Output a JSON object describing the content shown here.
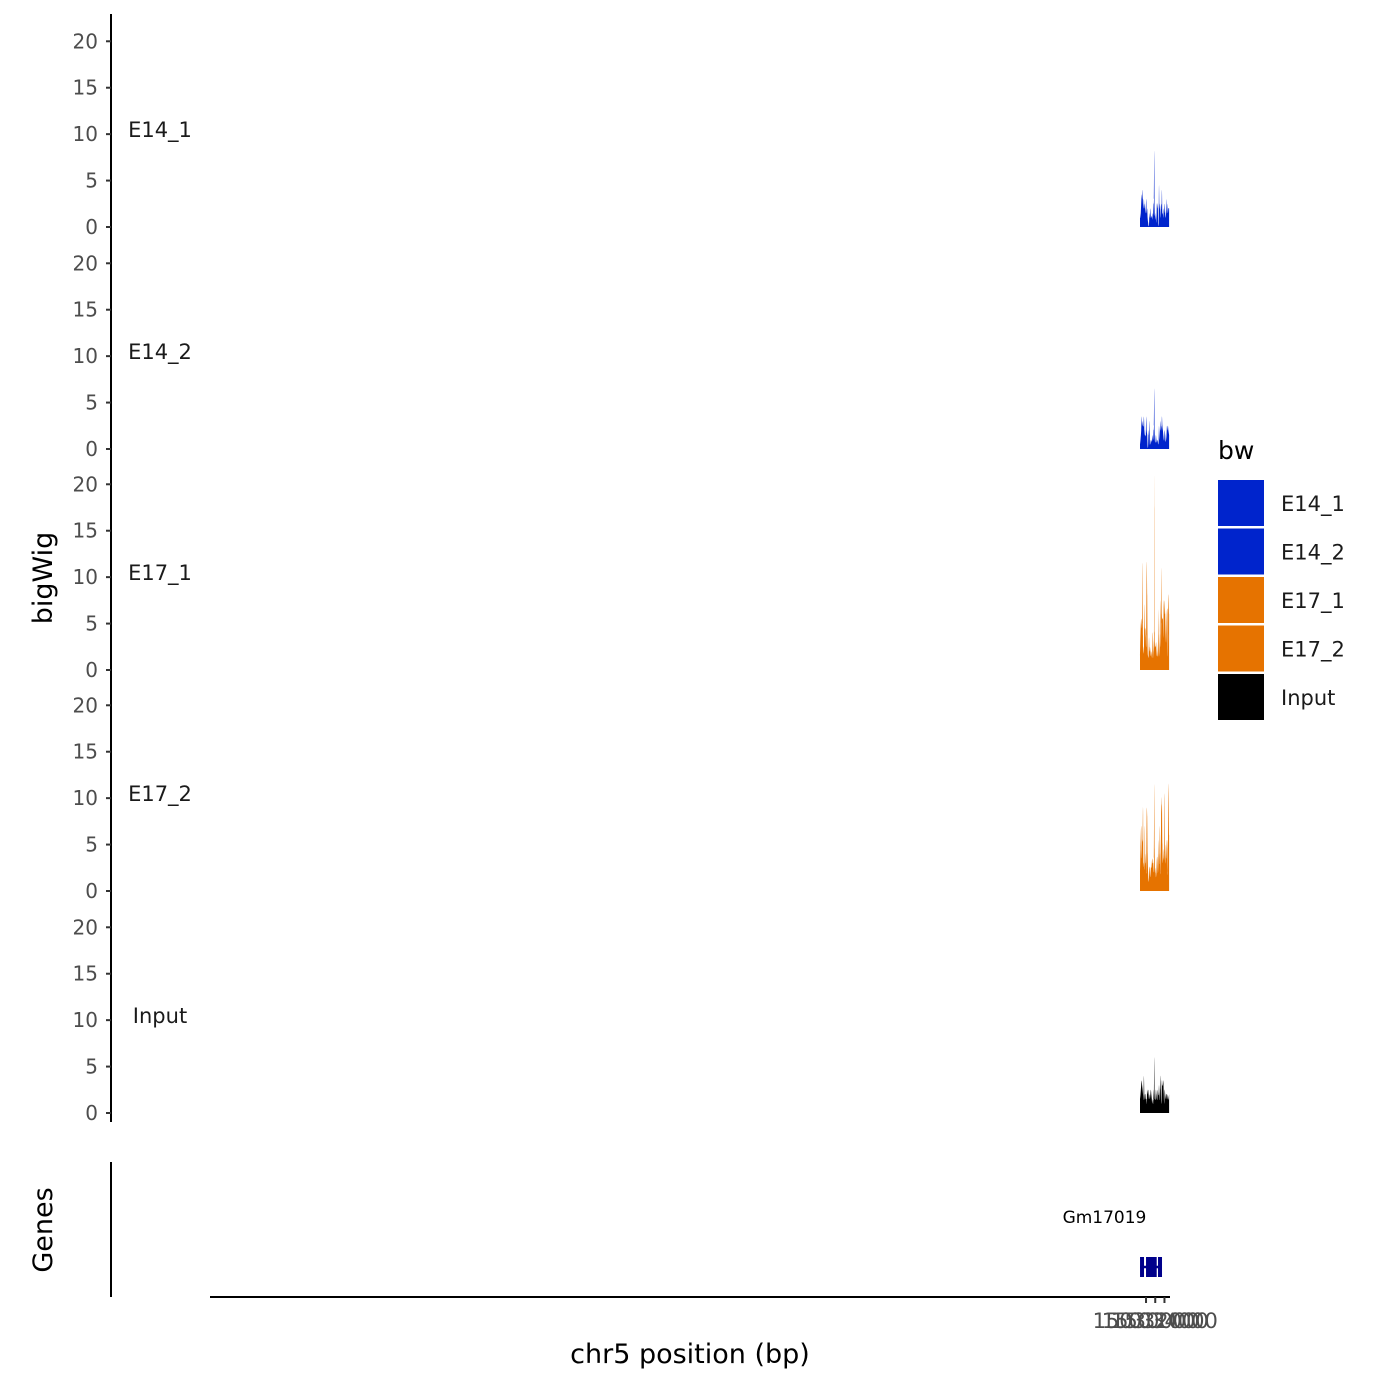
{
  "chart_data": {
    "type": "area",
    "ylabel": "bigWig",
    "xlabel": "chr5 position (bp)",
    "genes_label": "Genes",
    "xlim": [
      14827000,
      15035200
    ],
    "data_xlim": [
      15028700,
      15035000
    ],
    "x_ticks": [
      15030000,
      15032000,
      15034000
    ],
    "x_tick_labels": [
      "15030000",
      "15032000",
      "15034000"
    ],
    "ylim": [
      0,
      21
    ],
    "y_ticks": [
      0,
      5,
      10,
      15,
      20
    ],
    "y_tick_labels": [
      "0",
      "5",
      "10",
      "15",
      "20"
    ],
    "colors": {
      "E14": "#0024cc",
      "E17": "#e67300",
      "Input": "#000000",
      "gene": "#00008b"
    },
    "legend": {
      "title": "bw",
      "entries": [
        {
          "label": "E14_1",
          "color": "#0024cc"
        },
        {
          "label": "E14_2",
          "color": "#0024cc"
        },
        {
          "label": "E17_1",
          "color": "#e67300"
        },
        {
          "label": "E17_2",
          "color": "#e67300"
        },
        {
          "label": "Input",
          "color": "#000000"
        }
      ]
    },
    "series": [
      {
        "name": "E14_1",
        "color": "#0024cc",
        "x": [
          15028700,
          15028800,
          15028950,
          15029050,
          15029150,
          15029250,
          15029350,
          15029450,
          15029550,
          15029650,
          15029750,
          15029850,
          15029950,
          15030050,
          15030150,
          15030250,
          15030350,
          15030450,
          15030550,
          15030650,
          15030750,
          15030850,
          15030950,
          15031050,
          15031150,
          15031250,
          15031350,
          15031450,
          15031550,
          15031650,
          15031720,
          15031800,
          15031870,
          15031950,
          15032050,
          15032150,
          15032250,
          15032350,
          15032450,
          15032550,
          15032650,
          15032750,
          15032820,
          15032900,
          15033000,
          15033100,
          15033200,
          15033300,
          15033380,
          15033450,
          15033550,
          15033650,
          15033750,
          15033850,
          15033950,
          15034050,
          15034150,
          15034250,
          15034350,
          15034450,
          15034550,
          15034650,
          15034750,
          15034850,
          15035000
        ],
        "y": [
          1.5,
          1,
          2.5,
          3.5,
          3,
          4,
          2.5,
          2,
          3,
          2,
          2.5,
          1.5,
          2,
          3,
          1.5,
          2,
          1,
          0.5,
          0.1,
          0.3,
          1.5,
          1,
          2,
          1,
          1.2,
          1,
          1.5,
          0.8,
          1.5,
          2.5,
          3,
          8.2,
          2,
          1.2,
          0.8,
          1.5,
          0.5,
          2.5,
          2,
          2.5,
          0.3,
          0.5,
          4.5,
          2,
          2.5,
          1,
          2,
          2.5,
          2,
          4,
          1.5,
          1.5,
          1,
          2,
          1.5,
          2.5,
          1.5,
          1,
          1.5,
          3,
          1.5,
          2.5,
          1.5,
          2,
          2
        ]
      },
      {
        "name": "E14_2",
        "color": "#0024cc",
        "x": [
          15028700,
          15028800,
          15028950,
          15029050,
          15029150,
          15029250,
          15029350,
          15029450,
          15029550,
          15029650,
          15029750,
          15029850,
          15029950,
          15030050,
          15030150,
          15030250,
          15030350,
          15030450,
          15030550,
          15030650,
          15030750,
          15030850,
          15030950,
          15031050,
          15031150,
          15031250,
          15031350,
          15031450,
          15031550,
          15031650,
          15031720,
          15031800,
          15031870,
          15031950,
          15032050,
          15032150,
          15032250,
          15032350,
          15032450,
          15032550,
          15032650,
          15032750,
          15032820,
          15032900,
          15033000,
          15033100,
          15033200,
          15033300,
          15033380,
          15033450,
          15033550,
          15033650,
          15033750,
          15033850,
          15033950,
          15034050,
          15034150,
          15034250,
          15034350,
          15034450,
          15034550,
          15034650,
          15034750,
          15034850,
          15035000
        ],
        "y": [
          0.5,
          1,
          2,
          3.5,
          2.5,
          3,
          2.5,
          2.5,
          3.5,
          2,
          1.5,
          1.5,
          1.5,
          3.5,
          2,
          1.5,
          0.3,
          0.3,
          2,
          1.5,
          3,
          0.5,
          1,
          0.5,
          1,
          0.8,
          1,
          1.5,
          1,
          2,
          2.5,
          6.5,
          2,
          0.8,
          0.8,
          1.5,
          1,
          0.7,
          1,
          0.8,
          0.5,
          1,
          2.5,
          1,
          2,
          3,
          2,
          2.5,
          2,
          3.5,
          2.5,
          2,
          1.5,
          1,
          1,
          2,
          1.5,
          0.8,
          1,
          1.5,
          2.5,
          2,
          2.5,
          2,
          1.5
        ]
      },
      {
        "name": "E17_1",
        "color": "#e67300",
        "x": [
          15028700,
          15028800,
          15028950,
          15029050,
          15029150,
          15029250,
          15029350,
          15029450,
          15029550,
          15029650,
          15029750,
          15029850,
          15029950,
          15030050,
          15030150,
          15030250,
          15030350,
          15030450,
          15030550,
          15030650,
          15030750,
          15030850,
          15030950,
          15031050,
          15031150,
          15031250,
          15031350,
          15031450,
          15031550,
          15031650,
          15031720,
          15031800,
          15031870,
          15031950,
          15032050,
          15032150,
          15032250,
          15032350,
          15032450,
          15032550,
          15032650,
          15032750,
          15032820,
          15032900,
          15033000,
          15033100,
          15033200,
          15033300,
          15033380,
          15033450,
          15033550,
          15033650,
          15033750,
          15033850,
          15033950,
          15034050,
          15034150,
          15034250,
          15034350,
          15034450,
          15034550,
          15034650,
          15034750,
          15034850,
          15035000
        ],
        "y": [
          1.5,
          4,
          5.5,
          5,
          5,
          11.5,
          2.5,
          2.5,
          2,
          7,
          4.5,
          4.5,
          3.5,
          3,
          11.5,
          8,
          2.5,
          1.5,
          1.5,
          3.5,
          2,
          2.5,
          2,
          1.5,
          2,
          1.5,
          1.5,
          4,
          3,
          2,
          2.5,
          21,
          4,
          3,
          2.5,
          2.5,
          1.5,
          3,
          2,
          1.5,
          2,
          6.5,
          3,
          1.5,
          4,
          7.5,
          2.5,
          5,
          11,
          6,
          5.5,
          5.5,
          3.5,
          7.5,
          6,
          7.5,
          6,
          4,
          3,
          5,
          6.5,
          6,
          1.5,
          8,
          6
        ]
      },
      {
        "name": "E17_2",
        "color": "#e67300",
        "x": [
          15028700,
          15028800,
          15028950,
          15029050,
          15029150,
          15029250,
          15029350,
          15029450,
          15029550,
          15029650,
          15029750,
          15029850,
          15029950,
          15030050,
          15030150,
          15030250,
          15030350,
          15030450,
          15030550,
          15030650,
          15030750,
          15030850,
          15030950,
          15031050,
          15031150,
          15031250,
          15031350,
          15031450,
          15031550,
          15031650,
          15031720,
          15031800,
          15031870,
          15031950,
          15032050,
          15032150,
          15032250,
          15032350,
          15032450,
          15032550,
          15032650,
          15032750,
          15032820,
          15032900,
          15033000,
          15033100,
          15033200,
          15033300,
          15033380,
          15033450,
          15033550,
          15033650,
          15033750,
          15033850,
          15033950,
          15034050,
          15034150,
          15034250,
          15034350,
          15034450,
          15034550,
          15034650,
          15034750,
          15034850,
          15035000
        ],
        "y": [
          2,
          4.5,
          7,
          3.5,
          5.5,
          5.5,
          9,
          3,
          3,
          2.5,
          7,
          3,
          4,
          2,
          8.5,
          8,
          4,
          2,
          1,
          1.5,
          2.5,
          2.5,
          1.5,
          2.5,
          2.5,
          3,
          3.5,
          3,
          3,
          2,
          3.5,
          11.5,
          4.5,
          2,
          2.5,
          1.5,
          2,
          3.5,
          3.5,
          2,
          5.5,
          2,
          4,
          3,
          7,
          4,
          2,
          9,
          8.5,
          10,
          5,
          3,
          4.5,
          3.5,
          4,
          10.5,
          3,
          5,
          3.5,
          4.5,
          5.5,
          4.5,
          2,
          11.5,
          6
        ]
      },
      {
        "name": "Input",
        "color": "#000000",
        "x": [
          15028700,
          15028800,
          15028950,
          15029050,
          15029150,
          15029250,
          15029350,
          15029450,
          15029550,
          15029650,
          15029750,
          15029850,
          15029950,
          15030050,
          15030150,
          15030250,
          15030350,
          15030450,
          15030550,
          15030650,
          15030750,
          15030850,
          15030950,
          15031050,
          15031150,
          15031250,
          15031350,
          15031450,
          15031550,
          15031650,
          15031720,
          15031800,
          15031870,
          15031950,
          15032050,
          15032150,
          15032250,
          15032350,
          15032450,
          15032550,
          15032650,
          15032750,
          15032820,
          15032900,
          15033000,
          15033100,
          15033200,
          15033300,
          15033380,
          15033450,
          15033550,
          15033650,
          15033750,
          15033850,
          15033950,
          15034050,
          15034150,
          15034250,
          15034350,
          15034450,
          15034550,
          15034650,
          15034750,
          15034850,
          15035000
        ],
        "y": [
          1.5,
          2,
          3,
          3.5,
          3,
          2.5,
          2,
          1.5,
          4,
          1.5,
          2,
          2,
          1.5,
          1.5,
          1,
          2.5,
          2,
          2.5,
          2,
          1.5,
          2,
          1.5,
          2,
          2.5,
          2,
          1.5,
          1,
          1.5,
          1,
          2.5,
          1.5,
          6,
          2,
          1.5,
          1.5,
          2.5,
          2,
          1.5,
          1.5,
          2.5,
          2,
          2,
          3,
          2,
          1.5,
          4,
          2.5,
          1,
          2,
          3.5,
          3,
          3,
          3.5,
          2,
          1,
          2.5,
          2,
          1.5,
          2,
          2,
          1.5,
          2,
          1.5,
          1.5,
          2
        ]
      }
    ],
    "gene": {
      "name": "Gm17019",
      "strand": "-",
      "start": 15028700,
      "end": 15032800,
      "exons": [
        [
          15028700,
          15029150
        ],
        [
          15030000,
          15030180
        ],
        [
          15030800,
          15030930
        ],
        [
          15031450,
          15031620
        ],
        [
          15032600,
          15032800
        ]
      ]
    }
  }
}
